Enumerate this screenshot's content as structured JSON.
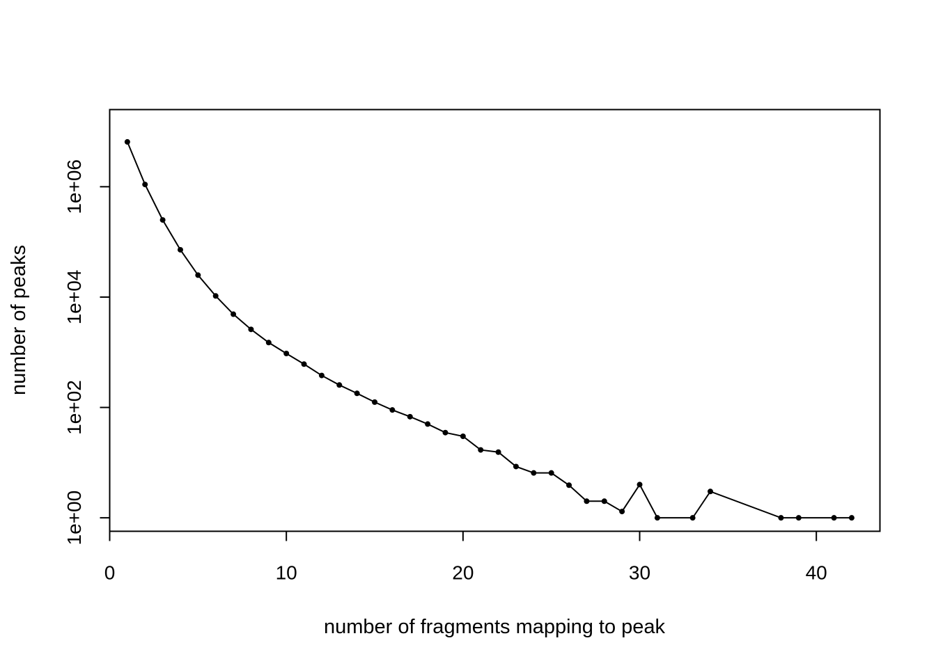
{
  "chart_data": {
    "type": "line",
    "title": "",
    "xlabel": "number of fragments mapping to peak",
    "ylabel": "number of peaks",
    "x_scale": "linear",
    "y_scale": "log10",
    "xlim": [
      0,
      43.6
    ],
    "ylim": [
      0.57,
      25000000
    ],
    "x_ticks": [
      0,
      10,
      20,
      30,
      40
    ],
    "x_tick_labels": [
      "0",
      "10",
      "20",
      "30",
      "40"
    ],
    "y_ticks": [
      1,
      100,
      10000,
      1000000
    ],
    "y_tick_labels": [
      "1e+00",
      "1e+02",
      "1e+04",
      "1e+06"
    ],
    "grid": false,
    "legend": "none",
    "colors": {
      "line": "#000000",
      "point": "#000000",
      "frame": "#000000"
    },
    "series": [
      {
        "x": [
          1,
          2,
          3,
          4,
          5,
          6,
          7,
          8,
          9,
          10,
          11,
          12,
          13,
          14,
          15,
          16,
          17,
          18,
          19,
          20,
          21,
          22,
          23,
          24,
          25,
          26,
          27,
          28,
          29,
          30,
          31,
          33,
          34,
          38,
          39,
          41,
          42
        ],
        "values": [
          6500000,
          1100000,
          250000,
          72000,
          25000,
          10500,
          4900,
          2600,
          1500,
          950,
          610,
          380,
          255,
          180,
          125,
          90,
          68,
          50,
          35,
          30,
          17,
          15.5,
          8.5,
          6.5,
          6.5,
          3.9,
          2.0,
          2.0,
          1.3,
          4.0,
          1,
          1,
          3,
          1,
          1,
          1,
          1
        ]
      }
    ]
  }
}
